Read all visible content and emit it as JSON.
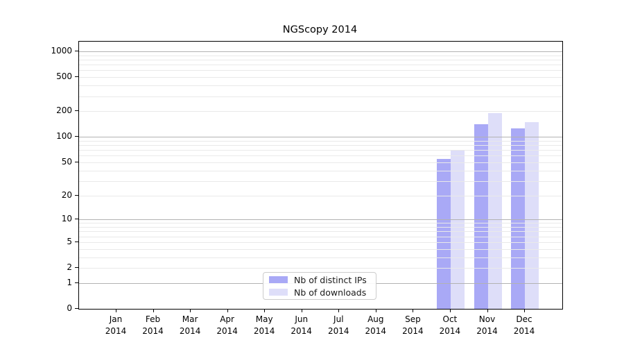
{
  "page": {
    "background": "#ffffff"
  },
  "chart_data": {
    "type": "bar",
    "title": "NGScopy 2014",
    "categories": [
      "Jan 2014",
      "Feb 2014",
      "Mar 2014",
      "Apr 2014",
      "May 2014",
      "Jun 2014",
      "Jul 2014",
      "Aug 2014",
      "Sep 2014",
      "Oct 2014",
      "Nov 2014",
      "Dec 2014"
    ],
    "series": [
      {
        "name": "Nb of distinct IPs",
        "color": "#a9a9f6",
        "values": [
          0,
          0,
          0,
          0,
          0,
          0,
          0,
          0,
          0,
          55,
          140,
          125
        ]
      },
      {
        "name": "Nb of downloads",
        "color": "#dedef9",
        "values": [
          0,
          0,
          0,
          0,
          0,
          0,
          0,
          0,
          0,
          70,
          190,
          150
        ]
      }
    ],
    "xlabel": "",
    "ylabel": "",
    "yscale": "log1p",
    "yticks": [
      0,
      1,
      2,
      5,
      10,
      20,
      50,
      100,
      200,
      500,
      1000
    ],
    "ylim": [
      0,
      1300
    ],
    "grid": {
      "major_values": [
        1,
        10,
        100,
        1000
      ],
      "major_color": "#b2b2b2",
      "minor_color": "#e9e9e9",
      "minor_rule": "2-9 per decade"
    },
    "legend": {
      "position": "lower-center",
      "border_color": "#cccccc"
    },
    "axis_color": "#000000"
  }
}
